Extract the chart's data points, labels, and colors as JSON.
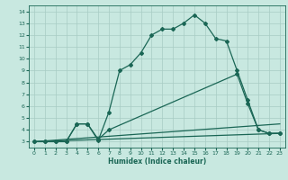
{
  "xlabel": "Humidex (Indice chaleur)",
  "ylabel": "",
  "bg_color": "#c8e8e0",
  "grid_color": "#a8ccc4",
  "line_color": "#1a6655",
  "xlim": [
    -0.5,
    23.5
  ],
  "ylim": [
    2.5,
    14.5
  ],
  "xticks": [
    0,
    1,
    2,
    3,
    4,
    5,
    6,
    7,
    8,
    9,
    10,
    11,
    12,
    13,
    14,
    15,
    16,
    17,
    18,
    19,
    20,
    21,
    22,
    23
  ],
  "yticks": [
    3,
    4,
    5,
    6,
    7,
    8,
    9,
    10,
    11,
    12,
    13,
    14
  ],
  "series": [
    {
      "x": [
        0,
        1,
        2,
        3,
        4,
        5,
        6,
        7,
        8,
        9,
        10,
        11,
        12,
        13,
        14,
        15,
        16,
        17,
        18,
        19,
        20,
        21,
        22,
        23
      ],
      "y": [
        3,
        3,
        3,
        3,
        4.5,
        4.5,
        3.1,
        5.5,
        9.0,
        9.5,
        10.5,
        12.0,
        12.5,
        12.5,
        13.0,
        13.7,
        13.0,
        11.7,
        11.5,
        9.0,
        6.5,
        4.0,
        3.7,
        3.7
      ],
      "marker": "D",
      "markersize": 2.0,
      "linewidth": 0.9
    },
    {
      "x": [
        0,
        1,
        2,
        3,
        4,
        5,
        6,
        7,
        19,
        20,
        21,
        22,
        23
      ],
      "y": [
        3,
        3,
        3,
        3,
        4.5,
        4.5,
        3.2,
        4.0,
        8.7,
        6.2,
        4.0,
        3.7,
        3.7
      ],
      "marker": "D",
      "markersize": 2.0,
      "linewidth": 0.9
    },
    {
      "x": [
        0,
        23
      ],
      "y": [
        3,
        4.5
      ],
      "marker": null,
      "markersize": 0,
      "linewidth": 0.9
    },
    {
      "x": [
        0,
        23
      ],
      "y": [
        3,
        3.7
      ],
      "marker": null,
      "markersize": 0,
      "linewidth": 0.9
    }
  ]
}
